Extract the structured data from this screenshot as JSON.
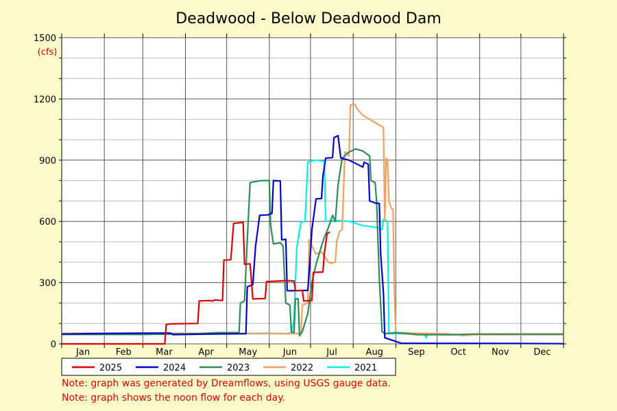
{
  "chart_data": {
    "type": "line",
    "title": "Deadwood - Below Deadwood Dam",
    "ylabel": "(cfs)",
    "xlabel": "",
    "ylim": [
      0,
      1500
    ],
    "xlim": [
      1,
      366
    ],
    "yticks": [
      0,
      300,
      600,
      900,
      1200,
      1500
    ],
    "months": [
      "Jan",
      "Feb",
      "Mar",
      "Apr",
      "May",
      "Jun",
      "Jul",
      "Aug",
      "Sep",
      "Oct",
      "Nov",
      "Dec"
    ],
    "grid": true,
    "legend_position": "bottom",
    "x_units": "day of year",
    "series": [
      {
        "name": "2025",
        "color": "#dd0000",
        "points": [
          [
            1,
            0
          ],
          [
            60,
            0
          ],
          [
            76,
            0
          ],
          [
            77,
            95
          ],
          [
            81,
            98
          ],
          [
            100,
            100
          ],
          [
            101,
            210
          ],
          [
            108,
            212
          ],
          [
            111,
            210
          ],
          [
            112,
            215
          ],
          [
            118,
            212
          ],
          [
            119,
            410
          ],
          [
            124,
            412
          ],
          [
            126,
            590
          ],
          [
            133,
            595
          ],
          [
            134,
            390
          ],
          [
            138,
            392
          ],
          [
            140,
            220
          ],
          [
            149,
            222
          ],
          [
            150,
            305
          ],
          [
            165,
            310
          ],
          [
            170,
            308
          ],
          [
            171,
            260
          ],
          [
            176,
            262
          ],
          [
            177,
            210
          ],
          [
            183,
            212
          ],
          [
            184,
            350
          ],
          [
            191,
            352
          ],
          [
            192,
            440
          ],
          [
            194,
            540
          ],
          [
            196,
            548
          ]
        ]
      },
      {
        "name": "2024",
        "color": "#0000cc",
        "points": [
          [
            1,
            48
          ],
          [
            20,
            50
          ],
          [
            50,
            52
          ],
          [
            80,
            53
          ],
          [
            82,
            45
          ],
          [
            110,
            48
          ],
          [
            135,
            50
          ],
          [
            136,
            280
          ],
          [
            140,
            290
          ],
          [
            142,
            480
          ],
          [
            145,
            630
          ],
          [
            151,
            632
          ],
          [
            154,
            640
          ],
          [
            155,
            800
          ],
          [
            160,
            798
          ],
          [
            161,
            510
          ],
          [
            164,
            512
          ],
          [
            165,
            260
          ],
          [
            180,
            262
          ],
          [
            181,
            350
          ],
          [
            183,
            560
          ],
          [
            186,
            710
          ],
          [
            190,
            712
          ],
          [
            191,
            820
          ],
          [
            193,
            910
          ],
          [
            198,
            912
          ],
          [
            199,
            1010
          ],
          [
            202,
            1020
          ],
          [
            204,
            910
          ],
          [
            210,
            900
          ],
          [
            216,
            880
          ],
          [
            220,
            866
          ],
          [
            221,
            890
          ],
          [
            224,
            880
          ],
          [
            225,
            700
          ],
          [
            229,
            690
          ],
          [
            232,
            688
          ],
          [
            233,
            440
          ],
          [
            235,
            250
          ],
          [
            236,
            30
          ],
          [
            248,
            3
          ],
          [
            330,
            2
          ],
          [
            366,
            1
          ]
        ]
      },
      {
        "name": "2023",
        "color": "#2e8b57",
        "points": [
          [
            1,
            46
          ],
          [
            60,
            46
          ],
          [
            100,
            50
          ],
          [
            115,
            55
          ],
          [
            125,
            55
          ],
          [
            130,
            55
          ],
          [
            131,
            200
          ],
          [
            134,
            210
          ],
          [
            136,
            510
          ],
          [
            138,
            790
          ],
          [
            142,
            795
          ],
          [
            146,
            800
          ],
          [
            152,
            800
          ],
          [
            153,
            580
          ],
          [
            155,
            490
          ],
          [
            160,
            495
          ],
          [
            162,
            480
          ],
          [
            164,
            200
          ],
          [
            167,
            190
          ],
          [
            168,
            60
          ],
          [
            170,
            55
          ],
          [
            171,
            220
          ],
          [
            173,
            220
          ],
          [
            174,
            40
          ],
          [
            176,
            60
          ],
          [
            180,
            150
          ],
          [
            183,
            300
          ],
          [
            186,
            390
          ],
          [
            190,
            480
          ],
          [
            192,
            520
          ],
          [
            195,
            570
          ],
          [
            198,
            630
          ],
          [
            200,
            600
          ],
          [
            202,
            780
          ],
          [
            205,
            910
          ],
          [
            210,
            940
          ],
          [
            215,
            955
          ],
          [
            220,
            945
          ],
          [
            225,
            920
          ],
          [
            226,
            800
          ],
          [
            229,
            790
          ],
          [
            230,
            700
          ],
          [
            232,
            320
          ],
          [
            234,
            60
          ],
          [
            236,
            50
          ],
          [
            244,
            55
          ],
          [
            260,
            45
          ],
          [
            285,
            45
          ],
          [
            300,
            48
          ],
          [
            330,
            48
          ],
          [
            366,
            48
          ]
        ]
      },
      {
        "name": "2022",
        "color": "#f0a060",
        "points": [
          [
            1,
            52
          ],
          [
            60,
            52
          ],
          [
            120,
            52
          ],
          [
            135,
            50
          ],
          [
            150,
            50
          ],
          [
            175,
            50
          ],
          [
            176,
            190
          ],
          [
            180,
            200
          ],
          [
            181,
            510
          ],
          [
            183,
            480
          ],
          [
            186,
            440
          ],
          [
            190,
            450
          ],
          [
            195,
            400
          ],
          [
            197,
            395
          ],
          [
            200,
            400
          ],
          [
            201,
            500
          ],
          [
            203,
            550
          ],
          [
            205,
            560
          ],
          [
            207,
            940
          ],
          [
            209,
            935
          ],
          [
            210,
            920
          ],
          [
            211,
            1170
          ],
          [
            214,
            1175
          ],
          [
            216,
            1150
          ],
          [
            220,
            1120
          ],
          [
            225,
            1100
          ],
          [
            230,
            1080
          ],
          [
            235,
            1060
          ],
          [
            236,
            600
          ],
          [
            237,
            910
          ],
          [
            238,
            900
          ],
          [
            239,
            700
          ],
          [
            241,
            660
          ],
          [
            242,
            660
          ],
          [
            243,
            240
          ],
          [
            244,
            55
          ],
          [
            250,
            55
          ],
          [
            260,
            52
          ],
          [
            280,
            50
          ],
          [
            290,
            45
          ],
          [
            292,
            40
          ],
          [
            300,
            45
          ],
          [
            330,
            45
          ],
          [
            366,
            45
          ]
        ]
      },
      {
        "name": "2021",
        "color": "#00eeee",
        "points": [
          [
            1,
            48
          ],
          [
            60,
            48
          ],
          [
            120,
            50
          ],
          [
            150,
            52
          ],
          [
            165,
            50
          ],
          [
            168,
            55
          ],
          [
            170,
            120
          ],
          [
            172,
            470
          ],
          [
            175,
            595
          ],
          [
            178,
            600
          ],
          [
            180,
            890
          ],
          [
            185,
            900
          ],
          [
            192,
            895
          ],
          [
            193,
            600
          ],
          [
            200,
            605
          ],
          [
            210,
            600
          ],
          [
            220,
            580
          ],
          [
            230,
            570
          ],
          [
            234,
            560
          ],
          [
            235,
            610
          ],
          [
            238,
            600
          ],
          [
            239,
            50
          ],
          [
            245,
            50
          ],
          [
            265,
            50
          ],
          [
            266,
            30
          ],
          [
            267,
            50
          ],
          [
            280,
            45
          ],
          [
            295,
            45
          ],
          [
            330,
            48
          ],
          [
            366,
            48
          ]
        ]
      }
    ]
  },
  "notes": [
    "Note: graph was generated by Dreamflows, using USGS gauge data.",
    "Note: graph shows the noon flow for each day."
  ]
}
